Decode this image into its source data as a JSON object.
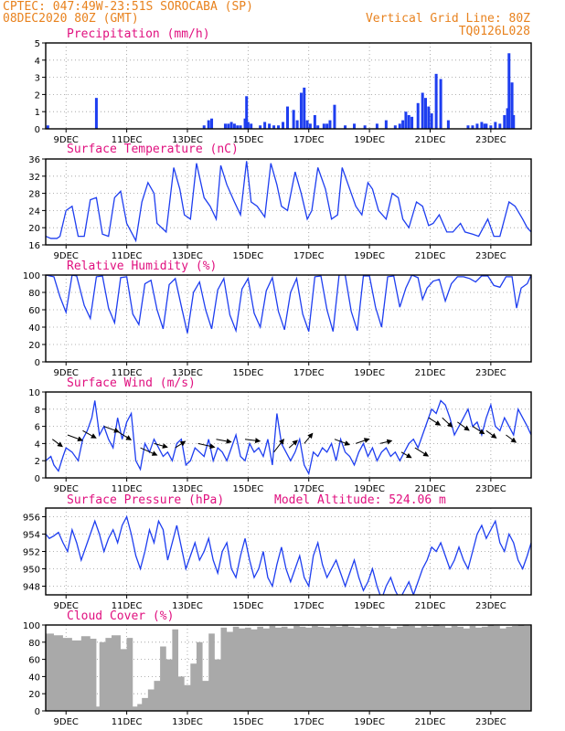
{
  "header": {
    "line1_left": "CPTEC:   047:49W-23:51S  SOROCABA (SP)",
    "line2_left": "08DEC2020 80Z (GMT)",
    "line1_right": "Vertical Grid Line: 80Z",
    "line2_right": "TQ0126L028"
  },
  "colors": {
    "title": "#e0107f",
    "header": "#e8821e",
    "series": "#1e3ef0",
    "cloud": "#a9a9a9",
    "grid": "#999999"
  },
  "x_axis": {
    "start": 8.33,
    "end": 24.33,
    "tick_days": [
      9,
      11,
      13,
      15,
      17,
      19,
      21,
      23
    ],
    "tick_labels": [
      "9DEC",
      "11DEC",
      "13DEC",
      "15DEC",
      "17DEC",
      "19DEC",
      "21DEC",
      "23DEC"
    ]
  },
  "chart_data": [
    {
      "type": "bar",
      "title": "Precipitation (mm/h)",
      "ylim": [
        0,
        5
      ],
      "yticks": [
        0,
        1,
        2,
        3,
        4,
        5
      ],
      "x": [
        8.4,
        10.0,
        13.55,
        13.7,
        13.8,
        14.25,
        14.35,
        14.45,
        14.55,
        14.65,
        14.75,
        14.9,
        14.95,
        15.0,
        15.1,
        15.4,
        15.55,
        15.7,
        15.85,
        16.0,
        16.15,
        16.3,
        16.5,
        16.62,
        16.75,
        16.85,
        16.95,
        17.05,
        17.2,
        17.3,
        17.5,
        17.6,
        17.7,
        17.85,
        18.2,
        18.5,
        18.85,
        19.25,
        19.55,
        19.85,
        20.0,
        20.1,
        20.2,
        20.3,
        20.4,
        20.6,
        20.75,
        20.85,
        20.95,
        21.05,
        21.2,
        21.35,
        21.6,
        22.25,
        22.4,
        22.55,
        22.7,
        22.8,
        22.85,
        23.0,
        23.15,
        23.3,
        23.45,
        23.55,
        23.6,
        23.7,
        23.75
      ],
      "values": [
        0.2,
        1.8,
        0.2,
        0.5,
        0.6,
        0.3,
        0.3,
        0.4,
        0.3,
        0.2,
        0.2,
        0.6,
        1.9,
        0.4,
        0.3,
        0.2,
        0.4,
        0.3,
        0.2,
        0.2,
        0.4,
        1.3,
        1.1,
        0.5,
        2.1,
        2.4,
        0.5,
        0.3,
        0.8,
        0.2,
        0.3,
        0.3,
        0.5,
        1.4,
        0.2,
        0.3,
        0.2,
        0.3,
        0.5,
        0.2,
        0.3,
        0.5,
        1.0,
        0.8,
        0.7,
        1.5,
        2.1,
        1.8,
        1.3,
        0.9,
        3.2,
        2.9,
        0.5,
        0.2,
        0.2,
        0.3,
        0.4,
        0.3,
        0.3,
        0.2,
        0.4,
        0.3,
        0.8,
        1.2,
        4.4,
        2.7,
        0.8
      ]
    },
    {
      "type": "line",
      "title": "Surface Temperature (nC)",
      "ylim": [
        16,
        36
      ],
      "yticks": [
        16,
        20,
        24,
        28,
        32,
        36
      ],
      "x": [
        8.33,
        8.5,
        8.7,
        8.8,
        9.0,
        9.2,
        9.4,
        9.6,
        9.8,
        10.0,
        10.2,
        10.4,
        10.6,
        10.8,
        11.0,
        11.3,
        11.5,
        11.7,
        11.9,
        12.0,
        12.3,
        12.55,
        12.75,
        12.9,
        13.1,
        13.3,
        13.55,
        13.75,
        13.95,
        14.1,
        14.3,
        14.55,
        14.75,
        14.95,
        15.1,
        15.3,
        15.55,
        15.75,
        15.95,
        16.1,
        16.3,
        16.55,
        16.75,
        16.95,
        17.1,
        17.3,
        17.55,
        17.75,
        17.95,
        18.1,
        18.3,
        18.55,
        18.75,
        18.95,
        19.1,
        19.3,
        19.55,
        19.75,
        19.95,
        20.1,
        20.3,
        20.55,
        20.75,
        20.95,
        21.1,
        21.3,
        21.55,
        21.75,
        22.0,
        22.15,
        22.4,
        22.6,
        22.9,
        23.1,
        23.3,
        23.6,
        23.8,
        24.05,
        24.2,
        24.33
      ],
      "values": [
        18,
        17.5,
        17.5,
        18,
        24,
        25,
        18,
        18,
        26.5,
        27,
        18.5,
        18,
        27,
        28.5,
        21,
        17,
        26,
        30.5,
        28,
        21,
        19,
        34,
        29,
        23,
        22,
        35,
        27,
        25,
        22,
        34.5,
        30,
        26,
        23,
        35.5,
        26,
        25,
        22.5,
        35,
        30,
        25,
        24,
        33,
        28,
        22,
        24,
        34,
        29,
        22,
        23,
        34,
        30,
        25,
        23,
        30.5,
        29,
        24,
        22,
        28,
        27,
        22,
        20,
        26,
        25,
        20.5,
        21,
        23,
        19,
        19,
        21,
        19,
        18.5,
        18,
        22,
        18,
        18,
        26,
        25,
        22,
        20,
        19
      ]
    },
    {
      "type": "line",
      "title": "Relative Humidity (%)",
      "ylim": [
        0,
        100
      ],
      "yticks": [
        0,
        20,
        40,
        60,
        80,
        100
      ],
      "x": [
        8.33,
        8.6,
        8.8,
        9.0,
        9.2,
        9.35,
        9.6,
        9.8,
        10.0,
        10.2,
        10.4,
        10.6,
        10.8,
        11.0,
        11.2,
        11.4,
        11.6,
        11.8,
        12.0,
        12.2,
        12.4,
        12.6,
        12.8,
        13.0,
        13.2,
        13.4,
        13.6,
        13.8,
        14.0,
        14.2,
        14.4,
        14.6,
        14.8,
        15.0,
        15.2,
        15.4,
        15.6,
        15.8,
        16.0,
        16.2,
        16.4,
        16.6,
        16.8,
        17.0,
        17.2,
        17.4,
        17.6,
        17.8,
        18.0,
        18.2,
        18.4,
        18.6,
        18.8,
        19.0,
        19.2,
        19.4,
        19.6,
        19.8,
        20.0,
        20.2,
        20.4,
        20.6,
        20.75,
        20.9,
        21.1,
        21.3,
        21.5,
        21.7,
        21.9,
        22.1,
        22.3,
        22.5,
        22.7,
        22.9,
        23.1,
        23.3,
        23.5,
        23.7,
        23.85,
        24.0,
        24.2,
        24.33
      ],
      "values": [
        100,
        98,
        75,
        57,
        100,
        99,
        65,
        50,
        98,
        99,
        62,
        45,
        97,
        98,
        55,
        43,
        90,
        94,
        60,
        38,
        89,
        96,
        64,
        33,
        80,
        92,
        60,
        38,
        83,
        96,
        54,
        36,
        84,
        96,
        56,
        40,
        82,
        97,
        58,
        37,
        80,
        96,
        55,
        35,
        98,
        99,
        60,
        35,
        100,
        100,
        58,
        36,
        99,
        99,
        63,
        40,
        98,
        99,
        63,
        85,
        100,
        97,
        72,
        85,
        93,
        95,
        70,
        90,
        98,
        98,
        96,
        92,
        99,
        99,
        88,
        86,
        98,
        98,
        62,
        85,
        90,
        100
      ]
    },
    {
      "type": "line",
      "title": "Surface Wind (m/s)",
      "ylim": [
        0,
        10
      ],
      "yticks": [
        0,
        2,
        4,
        6,
        8,
        10
      ],
      "x": [
        8.33,
        8.5,
        8.6,
        8.75,
        8.9,
        9.0,
        9.2,
        9.4,
        9.55,
        9.7,
        9.85,
        9.95,
        10.1,
        10.25,
        10.4,
        10.55,
        10.7,
        10.85,
        11.0,
        11.15,
        11.3,
        11.45,
        11.6,
        11.75,
        11.9,
        12.05,
        12.2,
        12.35,
        12.5,
        12.65,
        12.8,
        12.95,
        13.1,
        13.25,
        13.4,
        13.55,
        13.7,
        13.85,
        14.0,
        14.15,
        14.3,
        14.45,
        14.6,
        14.75,
        14.9,
        15.05,
        15.2,
        15.35,
        15.5,
        15.65,
        15.8,
        15.95,
        16.1,
        16.25,
        16.4,
        16.55,
        16.7,
        16.85,
        17.0,
        17.15,
        17.3,
        17.45,
        17.6,
        17.75,
        17.9,
        18.05,
        18.2,
        18.35,
        18.5,
        18.65,
        18.8,
        18.95,
        19.1,
        19.25,
        19.4,
        19.55,
        19.7,
        19.85,
        20.0,
        20.15,
        20.3,
        20.45,
        20.6,
        20.75,
        20.9,
        21.05,
        21.2,
        21.35,
        21.5,
        21.65,
        21.8,
        21.95,
        22.1,
        22.25,
        22.4,
        22.55,
        22.7,
        22.85,
        23.0,
        23.15,
        23.3,
        23.45,
        23.6,
        23.75,
        23.9,
        24.05,
        24.2,
        24.33
      ],
      "values": [
        2,
        2.5,
        1.5,
        0.8,
        2.5,
        3.5,
        3,
        2,
        4.5,
        5.5,
        7,
        9,
        5,
        6,
        4.5,
        3.5,
        7,
        4.5,
        6.5,
        7.5,
        2,
        1,
        4,
        3,
        4.5,
        3.5,
        2.5,
        3,
        2,
        4,
        4.5,
        1.5,
        2,
        3.5,
        3,
        2.5,
        4.5,
        2,
        3.5,
        3,
        2,
        3.5,
        5,
        2.5,
        2,
        4,
        3,
        3.5,
        2.5,
        4.5,
        1.5,
        7.5,
        4,
        3,
        2,
        3,
        4.5,
        1.5,
        0.5,
        3,
        2.5,
        3.5,
        3,
        4,
        2,
        4.5,
        3,
        2.5,
        1.5,
        3,
        4,
        2.5,
        3.5,
        2,
        3,
        3.5,
        2.5,
        3,
        2,
        3,
        4,
        4.5,
        3.5,
        5,
        6.5,
        8,
        7.5,
        9,
        8.5,
        7,
        5,
        6,
        7,
        8,
        6,
        6.5,
        5,
        7,
        8.5,
        6,
        5.5,
        7,
        6,
        5,
        8,
        7,
        6,
        5
      ]
    },
    {
      "type": "line",
      "title": "Surface Pressure (hPa)",
      "annotation": "Model Altitude: 524.06 m",
      "ylim": [
        947,
        957
      ],
      "yticks": [
        948,
        950,
        952,
        954,
        956
      ],
      "x": [
        8.33,
        8.45,
        8.6,
        8.75,
        8.9,
        9.05,
        9.2,
        9.35,
        9.5,
        9.65,
        9.8,
        9.95,
        10.1,
        10.25,
        10.4,
        10.55,
        10.7,
        10.85,
        11.0,
        11.15,
        11.3,
        11.45,
        11.6,
        11.75,
        11.9,
        12.05,
        12.2,
        12.35,
        12.5,
        12.65,
        12.8,
        12.95,
        13.1,
        13.25,
        13.4,
        13.55,
        13.7,
        13.85,
        14.0,
        14.15,
        14.3,
        14.45,
        14.6,
        14.75,
        14.9,
        15.05,
        15.2,
        15.35,
        15.5,
        15.65,
        15.8,
        15.95,
        16.1,
        16.25,
        16.4,
        16.55,
        16.7,
        16.85,
        17.0,
        17.15,
        17.3,
        17.45,
        17.6,
        17.75,
        17.9,
        18.05,
        18.2,
        18.35,
        18.5,
        18.65,
        18.8,
        18.95,
        19.1,
        19.25,
        19.4,
        19.55,
        19.7,
        19.85,
        20.0,
        20.15,
        20.3,
        20.45,
        20.6,
        20.75,
        20.9,
        21.05,
        21.2,
        21.35,
        21.5,
        21.65,
        21.8,
        21.95,
        22.1,
        22.25,
        22.4,
        22.55,
        22.7,
        22.85,
        23.0,
        23.15,
        23.3,
        23.45,
        23.6,
        23.75,
        23.9,
        24.05,
        24.2,
        24.33
      ],
      "values": [
        954,
        953.5,
        953.8,
        954.2,
        953,
        952,
        954.5,
        953,
        951,
        952.5,
        954,
        955.5,
        954,
        952,
        953.5,
        954.5,
        953,
        955,
        956,
        954,
        951.5,
        950,
        952,
        954.5,
        953,
        955.5,
        954.5,
        951,
        953,
        955,
        952.5,
        950,
        951.5,
        953,
        951,
        952,
        953.5,
        951,
        949.5,
        952,
        953,
        950,
        949,
        951.5,
        953.5,
        951,
        949,
        950,
        952,
        949,
        948,
        950.5,
        952.5,
        950,
        948.5,
        950,
        951.5,
        949,
        948,
        951.5,
        953,
        950.5,
        949,
        950,
        951,
        949.5,
        948,
        949.5,
        951,
        949,
        947.5,
        948.5,
        950,
        948,
        946.5,
        948,
        949,
        947.5,
        946.5,
        947.5,
        948.5,
        947,
        948.5,
        950,
        951,
        952.5,
        952,
        953,
        951.5,
        950,
        951,
        952.5,
        951,
        950,
        952,
        954,
        955,
        953.5,
        954.5,
        955.5,
        953,
        952,
        954,
        953,
        951,
        950,
        951.5,
        953
      ]
    },
    {
      "type": "area",
      "title": "Cloud Cover (%)",
      "ylim": [
        0,
        100
      ],
      "yticks": [
        0,
        20,
        40,
        60,
        80,
        100
      ],
      "x": [
        8.33,
        8.6,
        8.9,
        9.2,
        9.5,
        9.8,
        10.0,
        10.1,
        10.3,
        10.5,
        10.8,
        11.0,
        11.2,
        11.35,
        11.5,
        11.7,
        11.9,
        12.1,
        12.3,
        12.5,
        12.7,
        12.9,
        13.1,
        13.3,
        13.5,
        13.7,
        13.9,
        14.1,
        14.3,
        14.5,
        14.7,
        14.9,
        15.1,
        15.3,
        15.5,
        15.7,
        15.9,
        16.1,
        16.3,
        16.5,
        16.7,
        16.9,
        17.1,
        17.3,
        17.5,
        17.7,
        17.9,
        18.1,
        18.3,
        18.5,
        18.7,
        18.9,
        19.1,
        19.3,
        19.5,
        19.7,
        19.9,
        20.1,
        20.3,
        20.5,
        20.7,
        20.9,
        21.1,
        21.3,
        21.5,
        21.7,
        21.9,
        22.1,
        22.3,
        22.5,
        22.7,
        22.9,
        23.1,
        23.3,
        23.5,
        23.7,
        23.9,
        24.1,
        24.33
      ],
      "values": [
        90,
        88,
        85,
        82,
        87,
        84,
        5,
        80,
        85,
        88,
        72,
        85,
        5,
        8,
        15,
        25,
        35,
        75,
        60,
        95,
        40,
        30,
        55,
        80,
        35,
        90,
        60,
        97,
        92,
        98,
        96,
        97,
        95,
        98,
        96,
        99,
        97,
        98,
        96,
        99,
        98,
        97,
        99,
        98,
        97,
        99,
        98,
        100,
        98,
        97,
        99,
        98,
        97,
        99,
        98,
        96,
        98,
        100,
        99,
        97,
        99,
        98,
        100,
        99,
        97,
        99,
        98,
        96,
        99,
        97,
        98,
        100,
        99,
        96,
        98,
        99,
        100,
        99,
        100
      ]
    }
  ],
  "wind_arrows": {
    "x": [
      8.55,
      9.05,
      9.55,
      10.25,
      10.65,
      11.45,
      11.9,
      12.6,
      13.35,
      13.95,
      14.9,
      15.85,
      16.35,
      16.85,
      17.85,
      18.55,
      19.35,
      20.05,
      20.5,
      20.95,
      21.4,
      21.9,
      22.4,
      22.85,
      23.5
    ],
    "values": [
      4.5,
      5,
      5.5,
      6,
      5.5,
      3.5,
      4,
      3.5,
      4,
      4.5,
      4.5,
      3,
      3.5,
      4,
      4.5,
      4,
      4,
      3,
      3.5,
      7,
      7,
      6.5,
      6,
      5.5,
      5
    ],
    "dx": [
      0.6,
      0.9,
      0.8,
      0.9,
      0.9,
      1.0,
      0.8,
      0.6,
      1.0,
      0.9,
      0.9,
      0.6,
      0.5,
      0.5,
      0.9,
      0.8,
      0.7,
      0.6,
      0.8,
      0.7,
      0.6,
      0.7,
      0.7,
      0.6,
      0.6
    ],
    "dy": [
      -0.8,
      -0.6,
      -0.8,
      -0.6,
      -1.0,
      -0.8,
      -0.4,
      0.7,
      -0.4,
      -0.3,
      -0.2,
      1.4,
      0.8,
      1.1,
      -0.6,
      0.5,
      0.3,
      -0.6,
      -0.9,
      -0.8,
      -1.0,
      -0.9,
      -0.8,
      -0.8,
      -0.8
    ]
  }
}
